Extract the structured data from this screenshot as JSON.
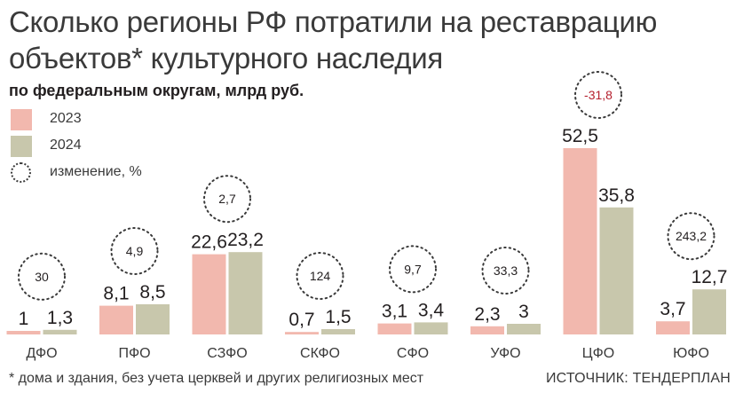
{
  "title": "Сколько регионы РФ потратили на реставрацию объектов* культурного наследия",
  "subtitle": "по федеральным округам,  млрд руб.",
  "legend": {
    "y2023": "2023",
    "y2024": "2024",
    "change": "изменение, %"
  },
  "footnote": "* дома и здания, без учета церквей и других религиозных мест",
  "source": "ИСТОЧНИК: ТЕНДЕРПЛАН",
  "colors": {
    "y2023": "#f2b8ae",
    "y2024": "#c8c7ac",
    "negative": "#b5202e",
    "text": "#231f20"
  },
  "chart_data": {
    "type": "bar",
    "categories": [
      "ДФО",
      "ПФО",
      "СЗФО",
      "СКФО",
      "СФО",
      "УФО",
      "ЦФО",
      "ЮФО"
    ],
    "series": [
      {
        "name": "2023",
        "values": [
          1,
          8.1,
          22.6,
          0.7,
          3.1,
          2.3,
          52.5,
          3.7
        ]
      },
      {
        "name": "2024",
        "values": [
          1.3,
          8.5,
          23.2,
          1.5,
          3.4,
          3,
          35.8,
          12.7
        ]
      }
    ],
    "value_labels": {
      "2023": [
        "1",
        "8,1",
        "22,6",
        "0,7",
        "3,1",
        "2,3",
        "52,5",
        "3,7"
      ],
      "2024": [
        "1,3",
        "8,5",
        "23,2",
        "1,5",
        "3,4",
        "3",
        "35,8",
        "12,7"
      ]
    },
    "change_percent": [
      "30",
      "4,9",
      "2,7",
      "124",
      "9,7",
      "33,3",
      "-31,8",
      "243,2"
    ],
    "change_values": [
      30,
      4.9,
      2.7,
      124,
      9.7,
      33.3,
      -31.8,
      243.2
    ],
    "ylim": [
      0,
      55
    ]
  }
}
